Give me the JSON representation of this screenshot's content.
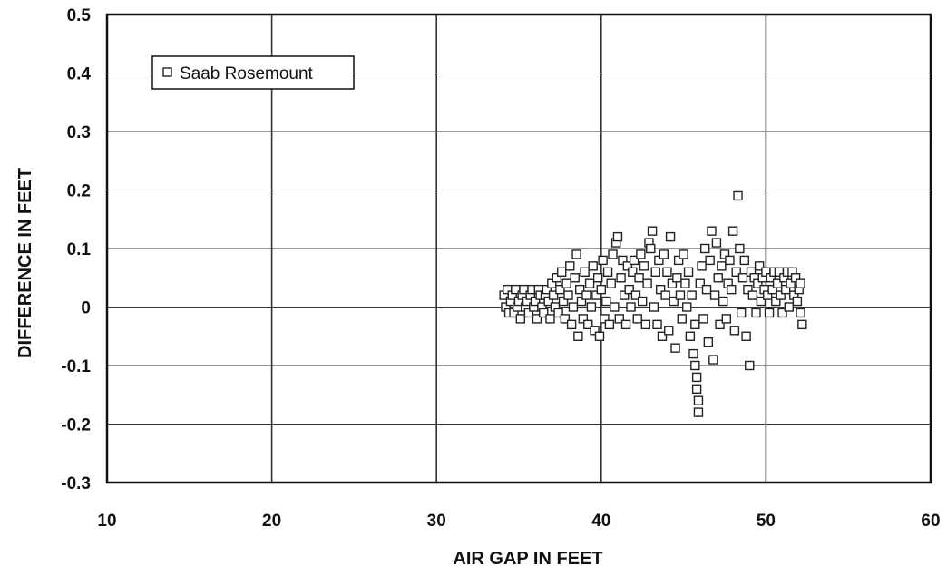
{
  "chart_data": {
    "type": "scatter",
    "xlabel": "AIR GAP IN FEET",
    "ylabel": "DIFFERENCE IN FEET",
    "xlim": [
      10,
      60
    ],
    "ylim": [
      -0.3,
      0.5
    ],
    "xticks": [
      10,
      20,
      30,
      40,
      50,
      60
    ],
    "yticks": [
      -0.3,
      -0.2,
      -0.1,
      0,
      0.1,
      0.2,
      0.3,
      0.4,
      0.5
    ],
    "ytick_labels": [
      "-0.3",
      "-0.2",
      "-0.1",
      "0",
      "0.1",
      "0.2",
      "0.3",
      "0.4",
      "0.5"
    ],
    "grid": true,
    "legend_position": "top-left",
    "marker": "open-square",
    "colors": {
      "marker": "#222222",
      "grid": "#333333",
      "frame": "#111111"
    },
    "series": [
      {
        "name": "Saab Rosemount",
        "points": [
          [
            34.1,
            0.02
          ],
          [
            34.2,
            0.0
          ],
          [
            34.3,
            0.03
          ],
          [
            34.4,
            -0.01
          ],
          [
            34.5,
            0.01
          ],
          [
            34.6,
            0.02
          ],
          [
            34.7,
            -0.01
          ],
          [
            34.8,
            0.03
          ],
          [
            34.9,
            0.0
          ],
          [
            35.0,
            0.01
          ],
          [
            35.1,
            -0.02
          ],
          [
            35.2,
            0.02
          ],
          [
            35.3,
            0.03
          ],
          [
            35.4,
            0.0
          ],
          [
            35.5,
            0.01
          ],
          [
            35.6,
            -0.01
          ],
          [
            35.7,
            0.02
          ],
          [
            35.8,
            0.03
          ],
          [
            35.9,
            0.0
          ],
          [
            36.0,
            0.01
          ],
          [
            36.1,
            -0.02
          ],
          [
            36.2,
            0.03
          ],
          [
            36.3,
            0.02
          ],
          [
            36.4,
            0.0
          ],
          [
            36.5,
            -0.01
          ],
          [
            36.6,
            0.02
          ],
          [
            36.7,
            0.03
          ],
          [
            36.8,
            0.01
          ],
          [
            36.9,
            -0.02
          ],
          [
            37.0,
            0.04
          ],
          [
            37.1,
            0.02
          ],
          [
            37.2,
            0.0
          ],
          [
            37.3,
            0.05
          ],
          [
            37.4,
            -0.01
          ],
          [
            37.5,
            0.03
          ],
          [
            37.6,
            0.06
          ],
          [
            37.7,
            0.01
          ],
          [
            37.8,
            -0.02
          ],
          [
            37.9,
            0.04
          ],
          [
            38.0,
            0.02
          ],
          [
            38.1,
            0.07
          ],
          [
            38.2,
            -0.03
          ],
          [
            38.3,
            0.0
          ],
          [
            38.4,
            0.05
          ],
          [
            38.5,
            0.09
          ],
          [
            38.6,
            -0.05
          ],
          [
            38.7,
            0.03
          ],
          [
            38.8,
            0.01
          ],
          [
            38.9,
            -0.02
          ],
          [
            39.0,
            0.06
          ],
          [
            39.1,
            0.02
          ],
          [
            39.2,
            -0.03
          ],
          [
            39.3,
            0.04
          ],
          [
            39.4,
            0.0
          ],
          [
            39.5,
            0.07
          ],
          [
            39.6,
            -0.04
          ],
          [
            39.7,
            0.02
          ],
          [
            39.8,
            0.05
          ],
          [
            39.9,
            -0.05
          ],
          [
            40.0,
            0.03
          ],
          [
            40.1,
            0.08
          ],
          [
            40.2,
            -0.02
          ],
          [
            40.3,
            0.01
          ],
          [
            40.4,
            0.06
          ],
          [
            40.5,
            -0.03
          ],
          [
            40.6,
            0.04
          ],
          [
            40.7,
            0.09
          ],
          [
            40.8,
            0.0
          ],
          [
            40.9,
            0.11
          ],
          [
            41.0,
            0.12
          ],
          [
            41.1,
            -0.02
          ],
          [
            41.2,
            0.05
          ],
          [
            41.3,
            0.08
          ],
          [
            41.4,
            0.02
          ],
          [
            41.5,
            -0.03
          ],
          [
            41.6,
            0.07
          ],
          [
            41.7,
            0.03
          ],
          [
            41.8,
            0.0
          ],
          [
            41.9,
            0.06
          ],
          [
            42.0,
            0.08
          ],
          [
            42.1,
            0.02
          ],
          [
            42.2,
            -0.02
          ],
          [
            42.3,
            0.05
          ],
          [
            42.4,
            0.09
          ],
          [
            42.5,
            0.01
          ],
          [
            42.6,
            0.07
          ],
          [
            42.7,
            -0.03
          ],
          [
            42.8,
            0.04
          ],
          [
            42.9,
            0.11
          ],
          [
            43.0,
            0.1
          ],
          [
            43.1,
            0.13
          ],
          [
            43.2,
            0.0
          ],
          [
            43.3,
            0.06
          ],
          [
            43.4,
            -0.03
          ],
          [
            43.5,
            0.08
          ],
          [
            43.6,
            0.03
          ],
          [
            43.7,
            -0.05
          ],
          [
            43.8,
            0.09
          ],
          [
            43.9,
            0.02
          ],
          [
            44.0,
            0.06
          ],
          [
            44.1,
            -0.04
          ],
          [
            44.2,
            0.12
          ],
          [
            44.3,
            0.04
          ],
          [
            44.4,
            0.01
          ],
          [
            44.5,
            -0.07
          ],
          [
            44.6,
            0.05
          ],
          [
            44.7,
            0.08
          ],
          [
            44.8,
            0.02
          ],
          [
            44.9,
            -0.02
          ],
          [
            45.0,
            0.09
          ],
          [
            45.1,
            0.04
          ],
          [
            45.2,
            0.0
          ],
          [
            45.3,
            0.06
          ],
          [
            45.4,
            -0.05
          ],
          [
            45.5,
            0.02
          ],
          [
            45.6,
            -0.08
          ],
          [
            45.7,
            -0.1
          ],
          [
            45.8,
            -0.12
          ],
          [
            45.8,
            -0.14
          ],
          [
            45.9,
            -0.16
          ],
          [
            45.9,
            -0.18
          ],
          [
            45.7,
            -0.03
          ],
          [
            46.0,
            0.04
          ],
          [
            46.1,
            0.07
          ],
          [
            46.2,
            -0.02
          ],
          [
            46.3,
            0.1
          ],
          [
            46.4,
            0.03
          ],
          [
            46.5,
            -0.06
          ],
          [
            46.6,
            0.08
          ],
          [
            46.7,
            0.13
          ],
          [
            46.8,
            -0.09
          ],
          [
            46.9,
            0.02
          ],
          [
            47.0,
            0.11
          ],
          [
            47.1,
            0.05
          ],
          [
            47.2,
            -0.03
          ],
          [
            47.3,
            0.07
          ],
          [
            47.4,
            0.01
          ],
          [
            47.5,
            0.09
          ],
          [
            47.6,
            -0.02
          ],
          [
            47.7,
            0.04
          ],
          [
            47.8,
            0.08
          ],
          [
            47.9,
            0.03
          ],
          [
            48.0,
            0.13
          ],
          [
            48.1,
            -0.04
          ],
          [
            48.2,
            0.06
          ],
          [
            48.3,
            0.19
          ],
          [
            48.4,
            0.1
          ],
          [
            48.5,
            -0.01
          ],
          [
            48.6,
            0.05
          ],
          [
            48.7,
            0.08
          ],
          [
            48.8,
            -0.05
          ],
          [
            48.9,
            0.03
          ],
          [
            49.0,
            -0.1
          ],
          [
            49.1,
            0.06
          ],
          [
            49.2,
            0.02
          ],
          [
            49.3,
            0.05
          ],
          [
            49.4,
            -0.01
          ],
          [
            49.5,
            0.04
          ],
          [
            49.6,
            0.07
          ],
          [
            49.7,
            0.01
          ],
          [
            49.8,
            0.05
          ],
          [
            49.9,
            0.03
          ],
          [
            50.0,
            0.06
          ],
          [
            50.1,
            0.02
          ],
          [
            50.2,
            -0.01
          ],
          [
            50.3,
            0.05
          ],
          [
            50.4,
            0.03
          ],
          [
            50.5,
            0.06
          ],
          [
            50.6,
            0.01
          ],
          [
            50.7,
            0.04
          ],
          [
            50.8,
            0.06
          ],
          [
            50.9,
            0.02
          ],
          [
            51.0,
            -0.01
          ],
          [
            51.1,
            0.05
          ],
          [
            51.2,
            0.03
          ],
          [
            51.3,
            0.06
          ],
          [
            51.4,
            0.0
          ],
          [
            51.5,
            0.04
          ],
          [
            51.6,
            0.06
          ],
          [
            51.7,
            0.02
          ],
          [
            51.8,
            0.05
          ],
          [
            51.9,
            0.01
          ],
          [
            52.0,
            0.03
          ],
          [
            52.1,
            -0.01
          ],
          [
            52.2,
            -0.03
          ],
          [
            52.1,
            0.04
          ]
        ]
      }
    ]
  }
}
